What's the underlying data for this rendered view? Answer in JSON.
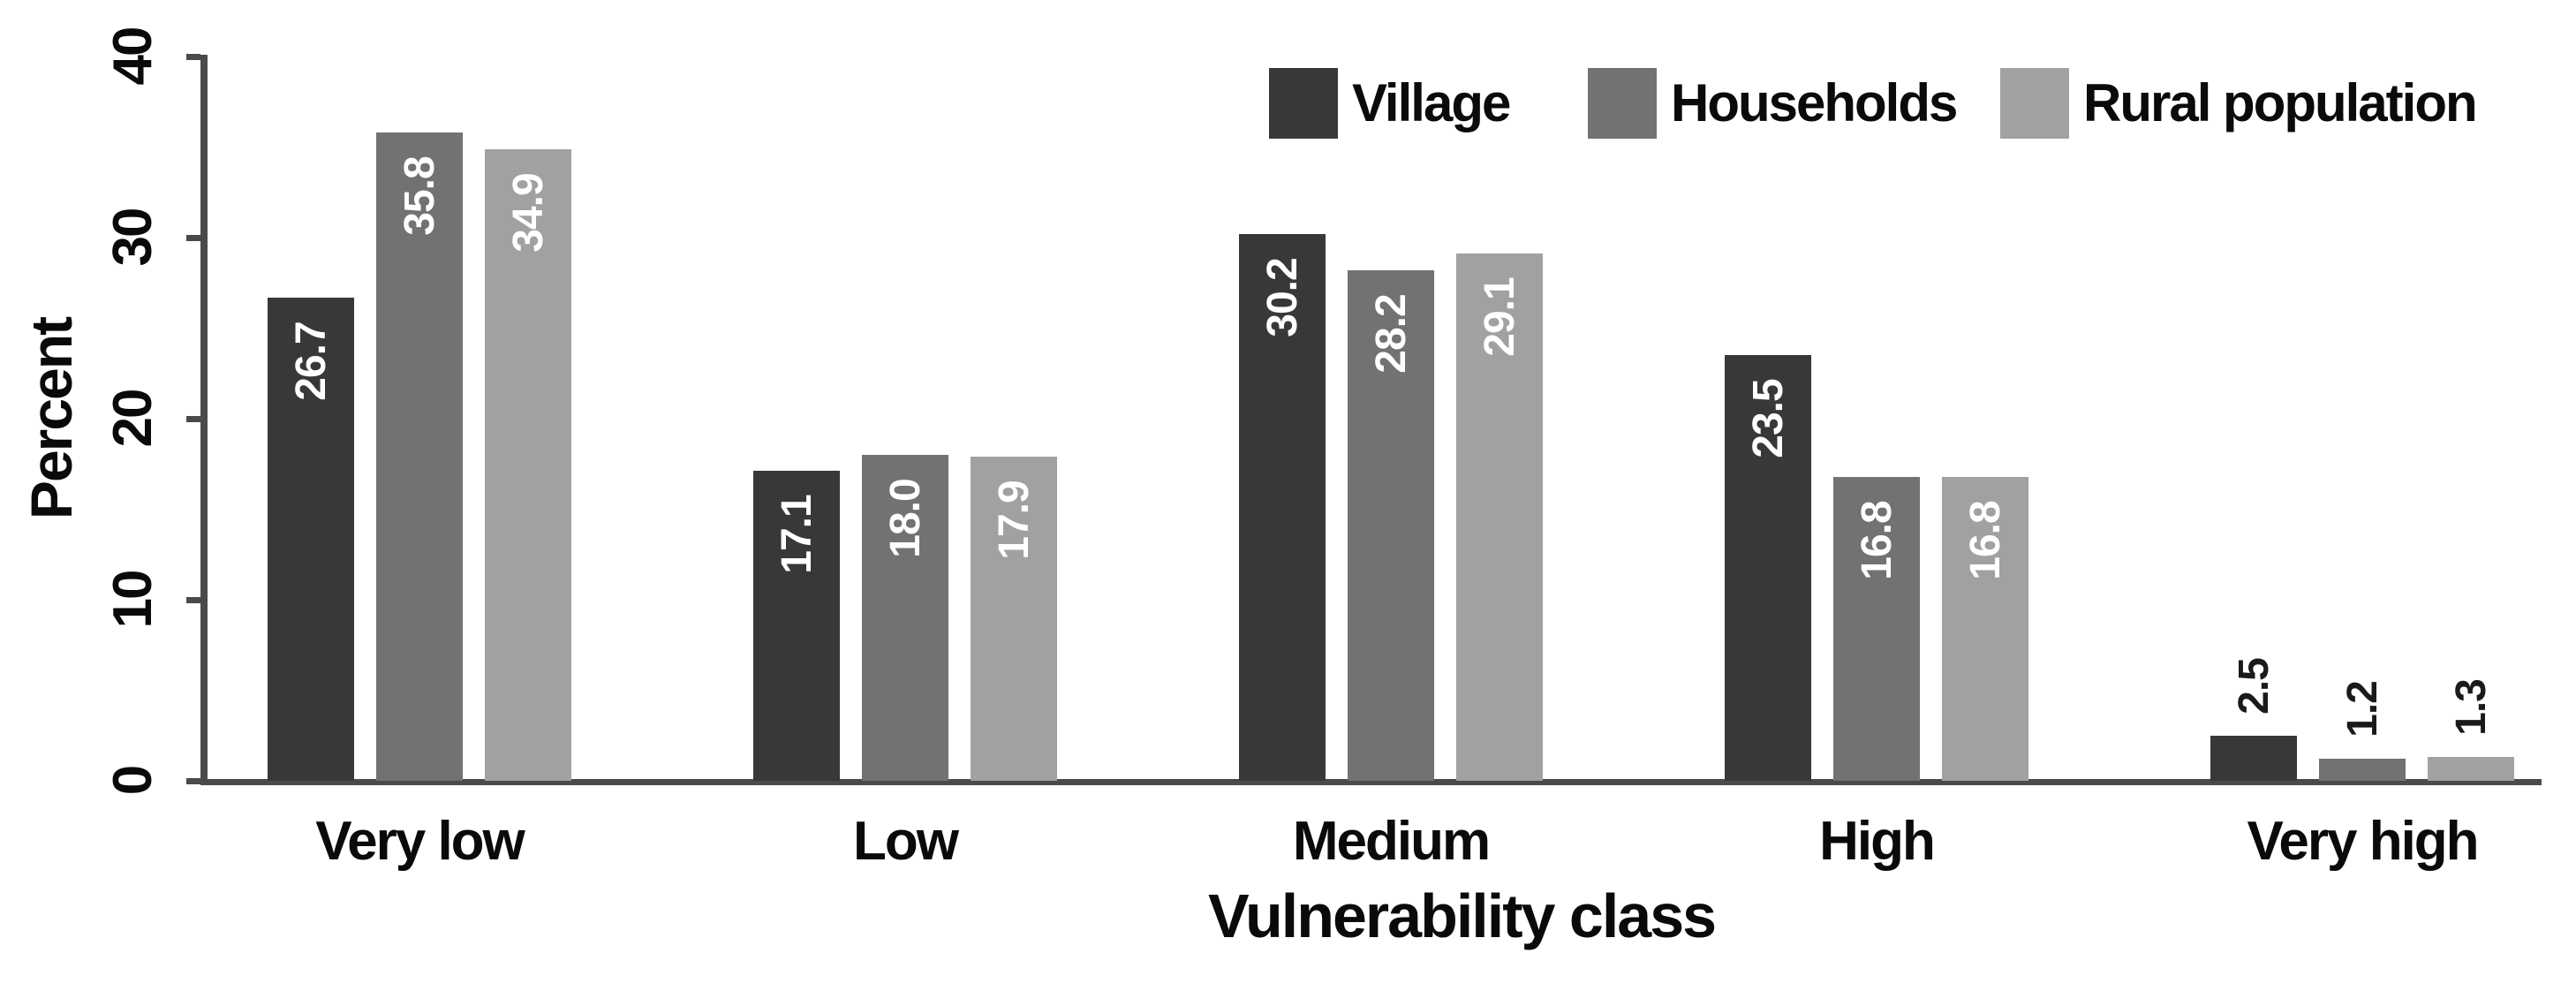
{
  "chart_data": {
    "type": "bar",
    "title": "",
    "xlabel": "Vulnerability class",
    "ylabel": "Percent",
    "categories": [
      "Very low",
      "Low",
      "Medium",
      "High",
      "Very high"
    ],
    "series": [
      {
        "name": "Village",
        "color": "#383838",
        "values": [
          26.7,
          17.1,
          30.2,
          23.5,
          2.5
        ],
        "display_values": [
          "26.7",
          "17.1",
          "30.2",
          "23.5",
          "2.5"
        ]
      },
      {
        "name": "Households",
        "color": "#727272",
        "values": [
          35.8,
          18.0,
          28.2,
          16.8,
          1.2
        ],
        "display_values": [
          "35.8",
          "18.0",
          "28.2",
          "16.8",
          "1.2"
        ]
      },
      {
        "name": "Rural population",
        "color": "#a1a1a1",
        "values": [
          34.9,
          17.9,
          29.1,
          16.8,
          1.3
        ],
        "display_values": [
          "34.9",
          "17.9",
          "29.1",
          "16.8",
          "1.3"
        ]
      }
    ],
    "ylim": [
      0,
      40
    ],
    "yticks": [
      0,
      10,
      20,
      30,
      40
    ],
    "grid": false,
    "legend_position": "top-right",
    "axis_color": "#4a4a4a",
    "tick_label_rotation": -90,
    "value_labels": {
      "rotation": -90,
      "inside_color": "#ffffff",
      "outside_color": "#1a1a1a",
      "outside_threshold": 5
    }
  }
}
